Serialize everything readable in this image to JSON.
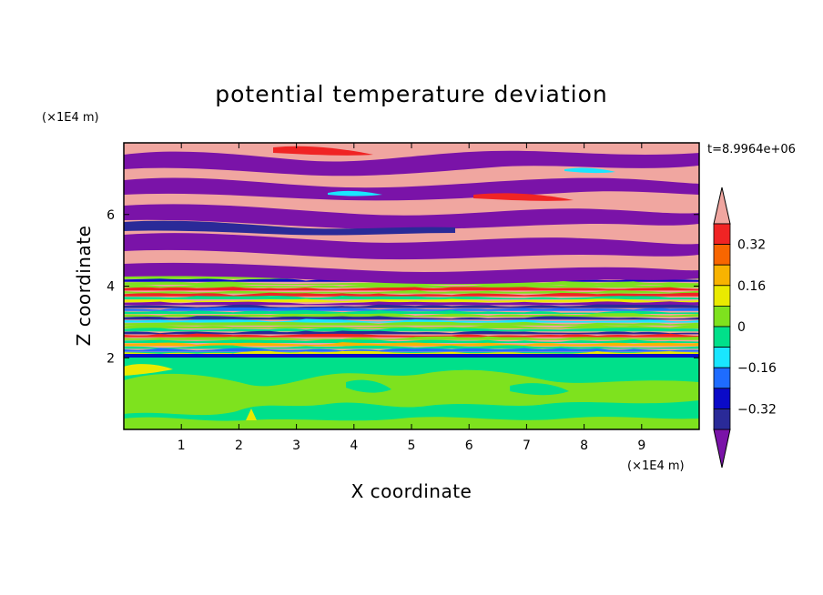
{
  "chart_data": {
    "type": "heatmap",
    "title": "potential temperature deviation",
    "xlabel": "X coordinate",
    "ylabel": "Z coordinate",
    "x_unit": "(×1E4 m)",
    "y_unit": "(×1E4 m)",
    "time_label": "t=8.9964e+06",
    "xlim": [
      0,
      10
    ],
    "ylim": [
      0,
      8
    ],
    "x_ticks": [
      "1",
      "2",
      "3",
      "4",
      "5",
      "6",
      "7",
      "8",
      "9"
    ],
    "y_ticks": [
      "2",
      "4",
      "6"
    ],
    "colorbar": {
      "levels": [
        -0.48,
        -0.4,
        -0.32,
        -0.24,
        -0.16,
        -0.08,
        0,
        0.08,
        0.16,
        0.24,
        0.32,
        0.4,
        0.48
      ],
      "labels": [
        "0.32",
        "0.16",
        "0",
        "−0.16",
        "−0.32"
      ],
      "colors": [
        "#7a13a8",
        "#2a2a98",
        "#0a0ac8",
        "#1e6cff",
        "#19e6ff",
        "#00e08a",
        "#7ee21e",
        "#eaea00",
        "#f8b300",
        "#f86600",
        "#f02424",
        "#f0a6a0"
      ],
      "extend": "both"
    },
    "colors": {
      "frame": "#000000",
      "background": "#ffffff"
    }
  }
}
